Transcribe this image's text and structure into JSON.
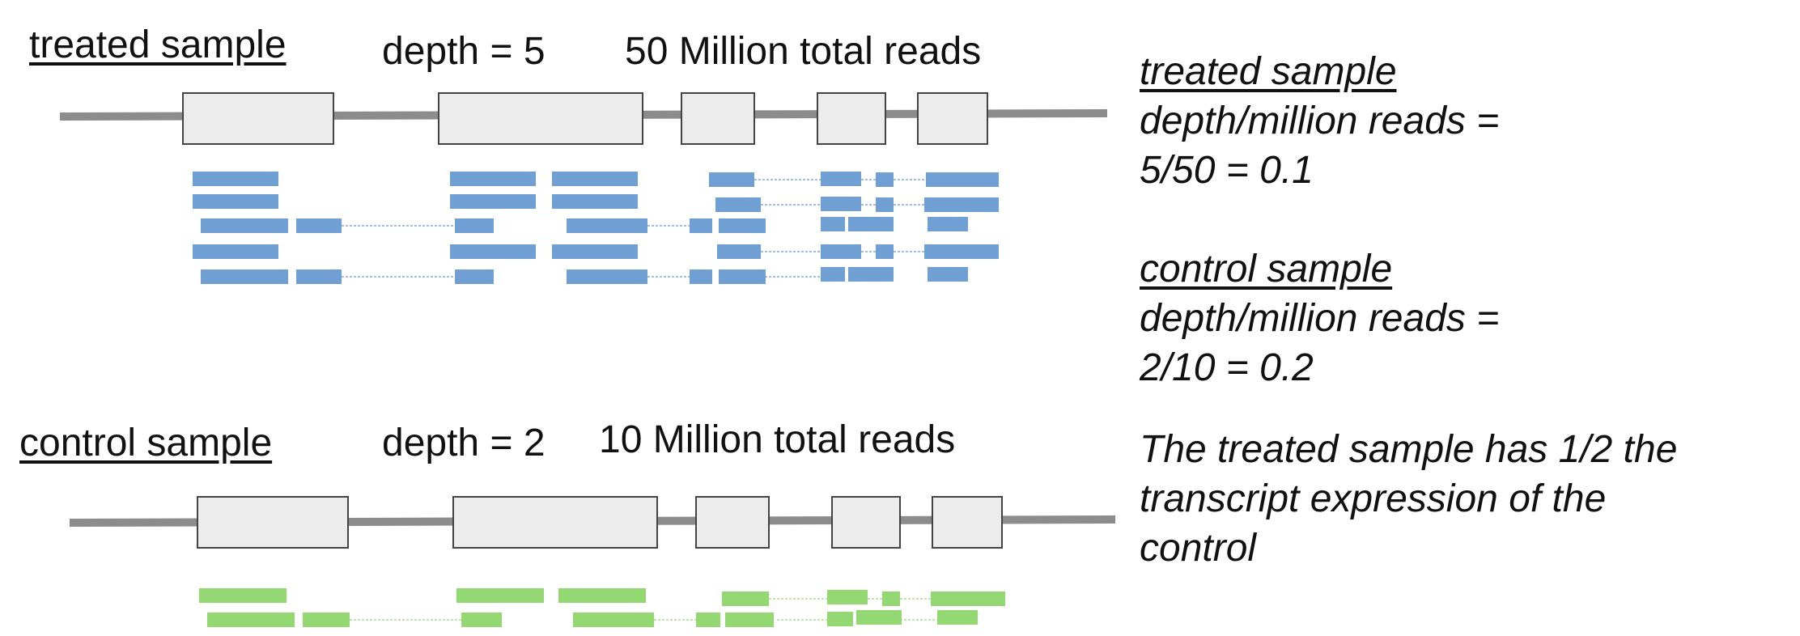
{
  "treated": {
    "title": "treated sample",
    "depth": "depth = 5",
    "reads": "50 Million total reads"
  },
  "control": {
    "title": "control sample",
    "depth": "depth = 2",
    "reads": "10 Million total reads"
  },
  "notes": {
    "treated_heading": "treated sample",
    "treated_line1": "depth/million reads =",
    "treated_line2": "5/50 = 0.1",
    "control_heading": "control sample",
    "control_line1": "depth/million reads =",
    "control_line2": "2/10 = 0.2",
    "conclusion_line1": "The treated sample has 1/2 the",
    "conclusion_line2": "transcript expression of the",
    "conclusion_line3": "control"
  },
  "colors": {
    "treated_reads": "#6f9fd3",
    "control_reads": "#93d872",
    "exon_fill": "#ececec",
    "intron_line": "#8c8c8c"
  }
}
